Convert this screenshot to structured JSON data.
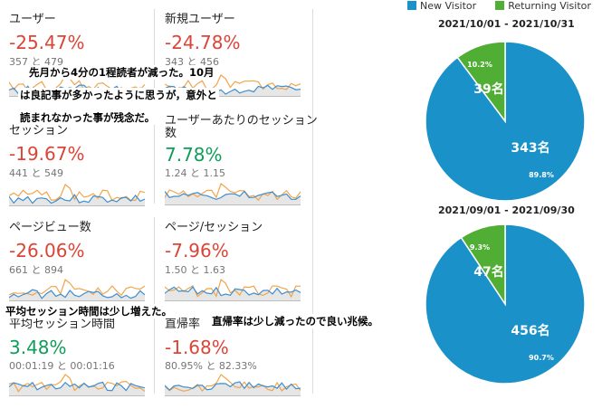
{
  "legend": {
    "new_label": "New Visitor",
    "returning_label": "Returning Visitor",
    "new_color": "#1a91c9",
    "returning_color": "#4fae33"
  },
  "metrics": [
    {
      "label": "ユーザー",
      "pct": "-25.47%",
      "cmp": "357 と 479",
      "trend": "down"
    },
    {
      "label": "新規ユーザー",
      "pct": "-24.78%",
      "cmp": "343 と 456",
      "trend": "down"
    },
    {
      "label": "セッション",
      "pct": "-19.67%",
      "cmp": "441 と 549",
      "trend": "down"
    },
    {
      "label": "ユーザーあたりのセッション",
      "label2": "数",
      "pct": "7.78%",
      "cmp": "1.24 と 1.15",
      "trend": "up"
    },
    {
      "label": "ページビュー数",
      "pct": "-26.06%",
      "cmp": "661 と 894",
      "trend": "down"
    },
    {
      "label": "ページ/セッション",
      "pct": "-7.96%",
      "cmp": "1.50 と 1.63",
      "trend": "down"
    },
    {
      "label": "平均セッション時間",
      "pct": "3.48%",
      "cmp": "00:01:19 と 00:01:16",
      "trend": "up"
    },
    {
      "label": "直帰率",
      "pct": "-1.68%",
      "cmp": "80.95% と 82.33%",
      "trend": "down"
    }
  ],
  "notes": {
    "note1_line1": "先月から4分の1程読者が減った。10月",
    "note1_line2": "は良記事が多かったように思うが，意外と",
    "note1_line3": "読まれなかった事が残念だ。",
    "note2": "平均セッション時間は少し増えた。",
    "note3": "直帰率は少し減ったので良い兆候。"
  },
  "chart_data": [
    {
      "type": "pie",
      "title": "2021/10/01 - 2021/10/31",
      "labels": [
        "New Visitor",
        "Returning Visitor"
      ],
      "values": [
        89.8,
        10.2
      ],
      "value_labels": [
        "89.8%",
        "10.2%"
      ],
      "count_labels": [
        "343名",
        "39名"
      ]
    },
    {
      "type": "pie",
      "title": "2021/09/01 - 2021/09/30",
      "labels": [
        "New Visitor",
        "Returning Visitor"
      ],
      "values": [
        90.7,
        9.3
      ],
      "value_labels": [
        "90.7%",
        "9.3%"
      ],
      "count_labels": [
        "456名",
        "47名"
      ]
    }
  ]
}
